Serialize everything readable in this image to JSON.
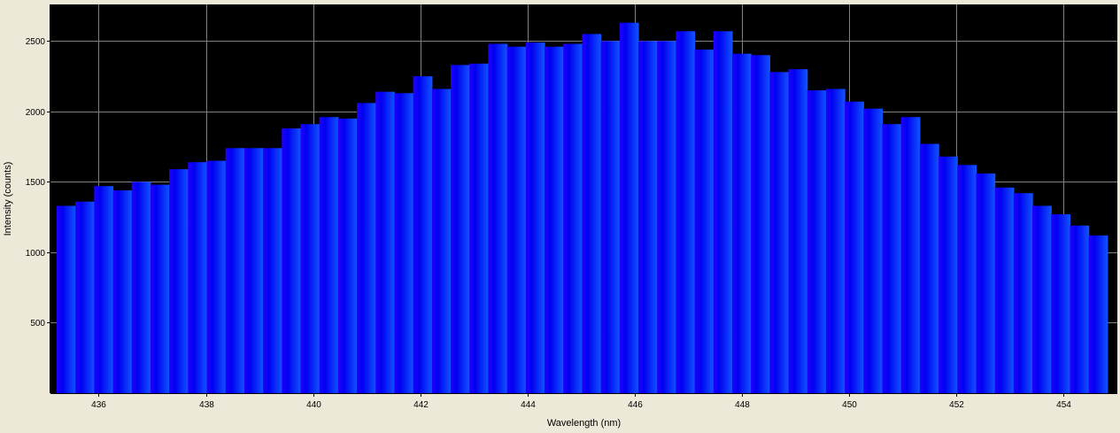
{
  "chart_data": {
    "type": "bar",
    "title": "",
    "xlabel": "Wavelength (nm)",
    "ylabel": "Intensity (counts)",
    "xlim": [
      435.1,
      455.0
    ],
    "ylim": [
      0,
      2760
    ],
    "x_ticks": [
      436,
      438,
      440,
      442,
      444,
      446,
      448,
      450,
      452,
      454
    ],
    "y_ticks": [
      500,
      1000,
      1500,
      2000,
      2500
    ],
    "grid": true,
    "bin_width": 0.35,
    "series": [
      {
        "x": [
          435.39,
          435.74,
          436.09,
          436.44,
          436.79,
          437.14,
          437.49,
          437.84,
          438.19,
          438.54,
          438.89,
          439.24,
          439.59,
          439.94,
          440.29,
          440.64,
          440.99,
          441.34,
          441.69,
          442.04,
          442.39,
          442.74,
          443.09,
          443.44,
          443.79,
          444.14,
          444.49,
          444.84,
          445.19,
          445.54,
          445.89,
          446.24,
          446.59,
          446.94,
          447.29,
          447.64,
          447.99,
          448.34,
          448.69,
          449.04,
          449.39,
          449.74,
          450.09,
          450.44,
          450.79,
          451.14,
          451.49,
          451.84,
          452.19,
          452.54,
          452.89,
          453.24,
          453.59,
          453.94,
          454.29,
          454.64
        ],
        "values": [
          1330,
          1360,
          1470,
          1440,
          1500,
          1480,
          1590,
          1640,
          1650,
          1740,
          1740,
          1740,
          1880,
          1910,
          1960,
          1950,
          2060,
          2140,
          2130,
          2250,
          2160,
          2330,
          2340,
          2480,
          2460,
          2490,
          2460,
          2480,
          2550,
          2500,
          2630,
          2500,
          2500,
          2570,
          2440,
          2570,
          2410,
          2400,
          2280,
          2300,
          2150,
          2160,
          2070,
          2020,
          1910,
          1960,
          1770,
          1680,
          1620,
          1560,
          1460,
          1420,
          1330,
          1270,
          1190,
          1120
        ]
      }
    ],
    "colors": {
      "plot_background": "#000000",
      "grid": "#808080",
      "bar_start": "#2200ff",
      "bar_mid": "#0000f0",
      "bar_end": "#1155ff",
      "page_background": "#ece9d8"
    }
  }
}
